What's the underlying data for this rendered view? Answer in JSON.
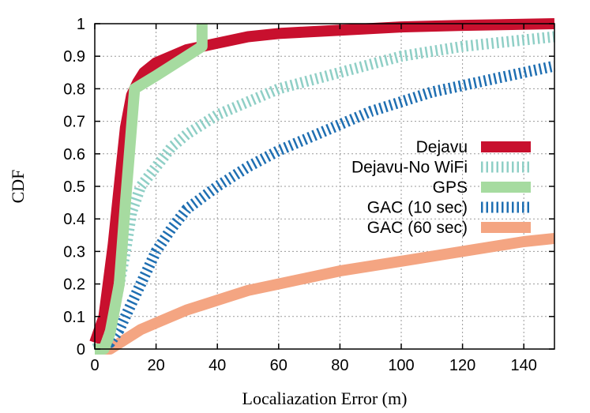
{
  "chart_data": {
    "type": "line",
    "title": "",
    "xlabel": "Localiazation Error (m)",
    "ylabel": "CDF",
    "xlim": [
      0,
      150
    ],
    "ylim": [
      0,
      1
    ],
    "grid": true,
    "legend_position": "center-right",
    "x_ticks": [
      0,
      20,
      40,
      60,
      80,
      100,
      120,
      140
    ],
    "y_ticks": [
      0,
      0.1,
      0.2,
      0.3,
      0.4,
      0.5,
      0.6,
      0.7,
      0.8,
      0.9,
      1
    ],
    "x_tick_labels": [
      "0",
      "20",
      "40",
      "60",
      "80",
      "100",
      "120",
      "140"
    ],
    "y_tick_labels": [
      "0",
      "0.1",
      "0.2",
      "0.3",
      "0.4",
      "0.5",
      "0.6",
      "0.7",
      "0.8",
      "0.9",
      "1"
    ],
    "series": [
      {
        "name": "Dejavu",
        "color": "#c8102e",
        "style": "solid",
        "x": [
          0,
          3,
          6,
          8,
          10,
          12,
          14,
          16,
          20,
          25,
          30,
          40,
          50,
          60,
          80,
          100,
          120,
          150
        ],
        "y": [
          0.02,
          0.1,
          0.32,
          0.5,
          0.68,
          0.78,
          0.82,
          0.85,
          0.88,
          0.9,
          0.92,
          0.94,
          0.96,
          0.97,
          0.98,
          0.99,
          0.995,
          1.0
        ]
      },
      {
        "name": "Dejavu-No WiFi",
        "color": "#8fcfc6",
        "style": "dashed",
        "x": [
          0,
          4,
          6,
          8,
          10,
          12,
          15,
          20,
          25,
          30,
          40,
          50,
          60,
          80,
          100,
          120,
          150
        ],
        "y": [
          0.0,
          0.02,
          0.1,
          0.2,
          0.3,
          0.42,
          0.5,
          0.56,
          0.62,
          0.66,
          0.72,
          0.76,
          0.8,
          0.85,
          0.9,
          0.93,
          0.96
        ]
      },
      {
        "name": "GPS",
        "color": "#a6dba0",
        "style": "solid",
        "x": [
          0,
          3,
          5,
          8,
          10,
          13,
          20,
          30,
          35,
          35
        ],
        "y": [
          0.0,
          0.0,
          0.05,
          0.2,
          0.45,
          0.8,
          0.84,
          0.9,
          0.93,
          1.0
        ]
      },
      {
        "name": "GAC (10 sec)",
        "color": "#1f6fb2",
        "style": "dashed",
        "x": [
          0,
          5,
          8,
          10,
          15,
          20,
          25,
          30,
          40,
          50,
          60,
          70,
          80,
          90,
          100,
          110,
          120,
          130,
          140,
          150
        ],
        "y": [
          0.0,
          0.02,
          0.06,
          0.1,
          0.2,
          0.3,
          0.37,
          0.43,
          0.5,
          0.56,
          0.61,
          0.65,
          0.69,
          0.73,
          0.76,
          0.79,
          0.81,
          0.83,
          0.85,
          0.87
        ]
      },
      {
        "name": "GAC (60 sec)",
        "color": "#f4a582",
        "style": "solid",
        "x": [
          0,
          5,
          10,
          15,
          20,
          30,
          40,
          50,
          60,
          80,
          100,
          120,
          140,
          150
        ],
        "y": [
          0.0,
          0.0,
          0.03,
          0.06,
          0.08,
          0.12,
          0.15,
          0.18,
          0.2,
          0.24,
          0.27,
          0.3,
          0.33,
          0.34
        ]
      }
    ]
  }
}
